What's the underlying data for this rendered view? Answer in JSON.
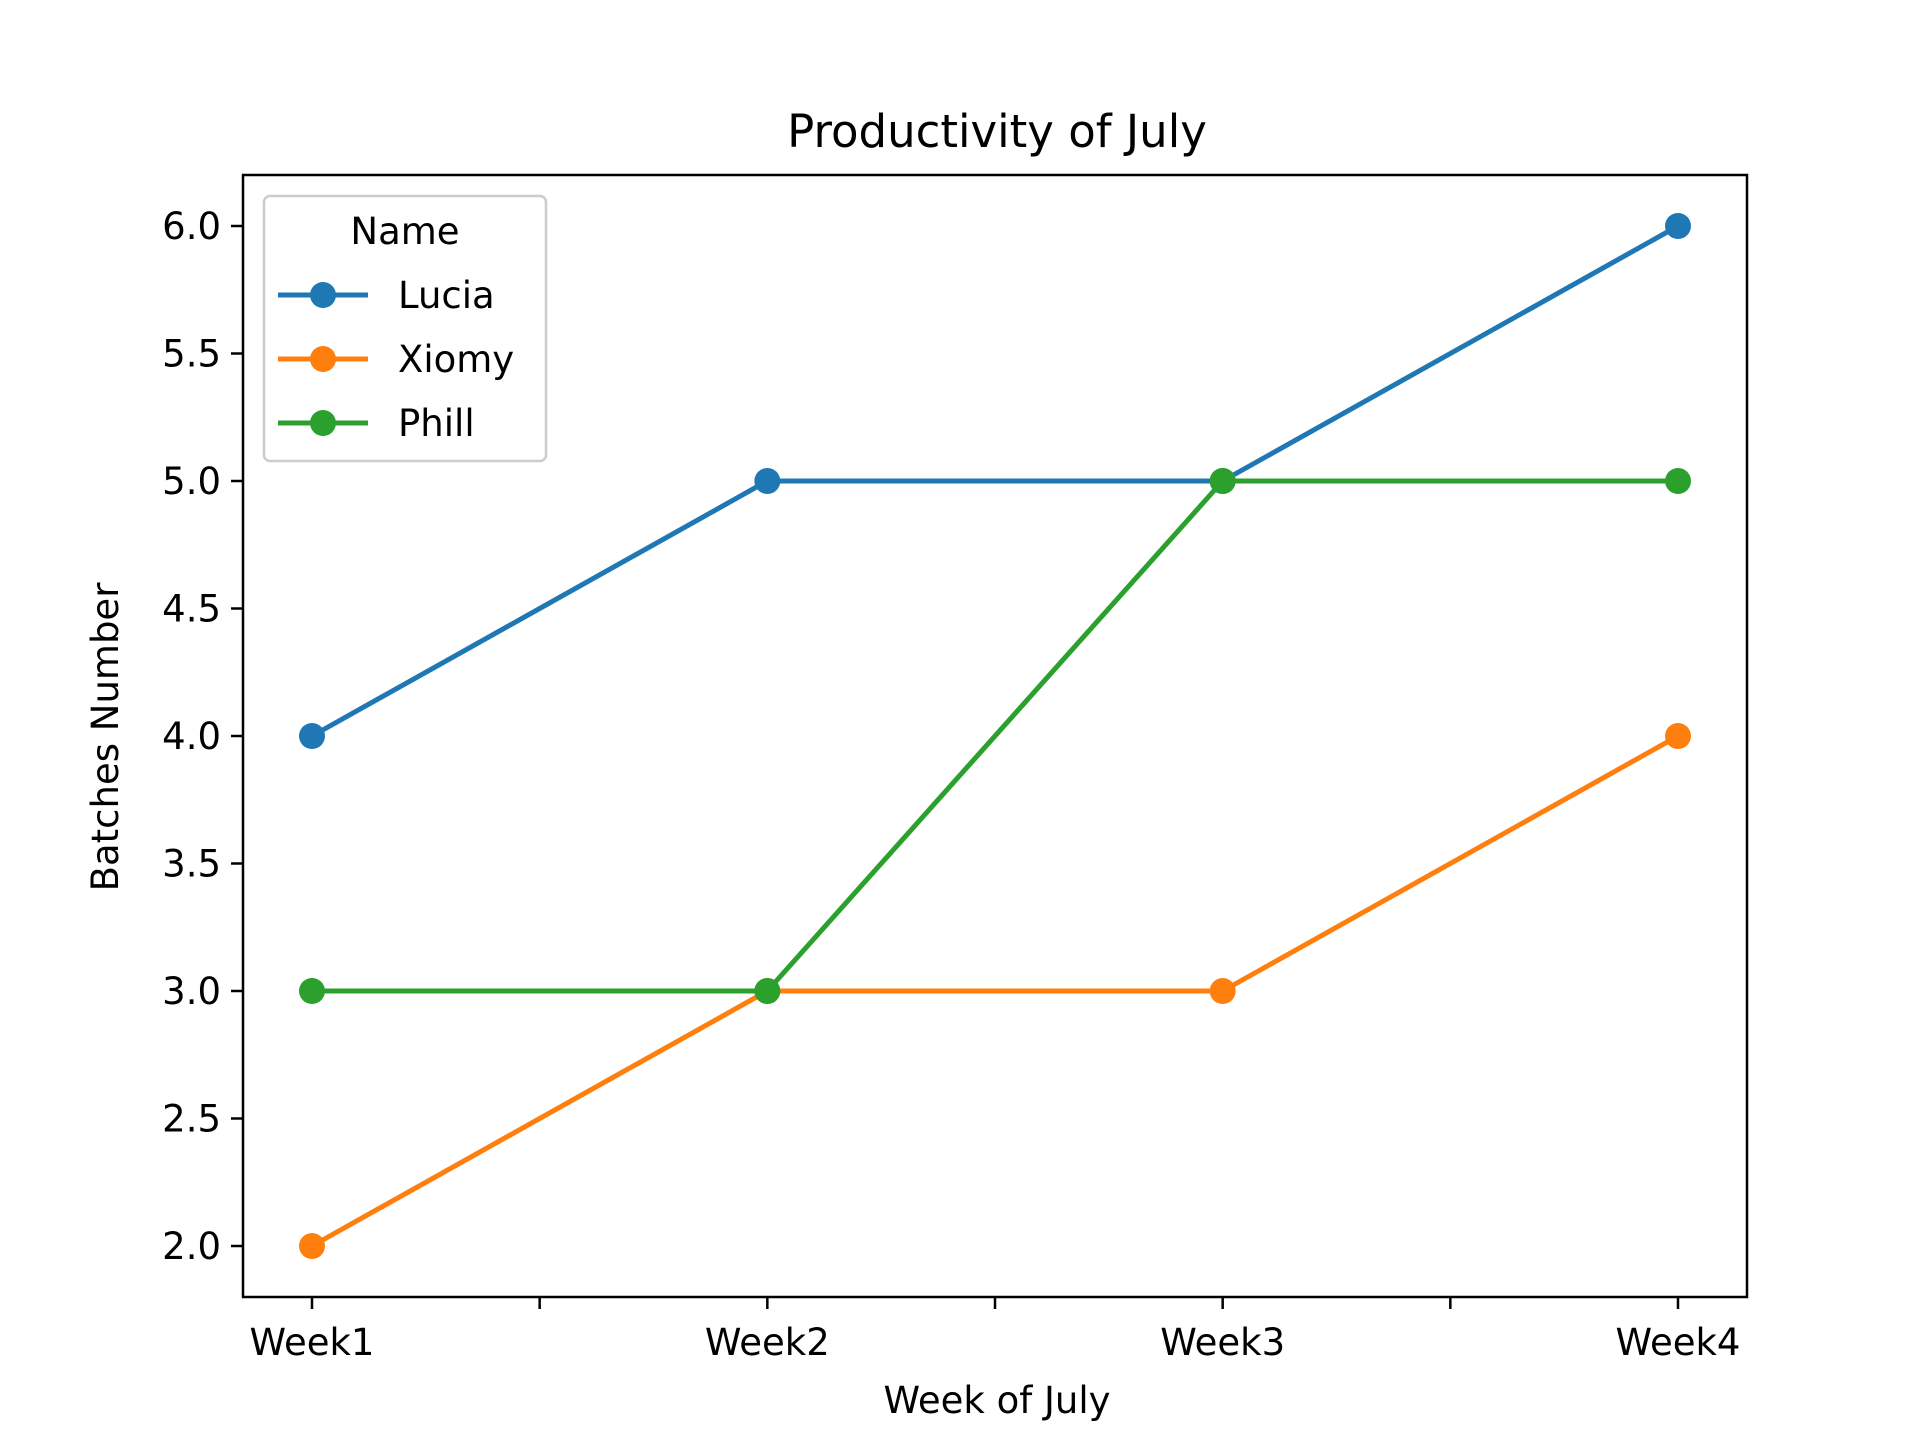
{
  "chart_data": {
    "type": "line",
    "title": "Productivity of July",
    "xlabel": "Week of July",
    "ylabel": "Batches Number",
    "categories": [
      "Week1",
      "Week2",
      "Week3",
      "Week4"
    ],
    "ylim": [
      1.8,
      6.2
    ],
    "yticks": [
      "2.0",
      "2.5",
      "3.0",
      "3.5",
      "4.0",
      "4.5",
      "5.0",
      "5.5",
      "6.0"
    ],
    "grid": false,
    "legend": {
      "title": "Name",
      "placement": "top-left"
    },
    "series": [
      {
        "name": "Lucia",
        "values": [
          4,
          5,
          5,
          6
        ],
        "color": "#1f77b4"
      },
      {
        "name": "Xiomy",
        "values": [
          2,
          3,
          3,
          4
        ],
        "color": "#ff7f0e"
      },
      {
        "name": "Phill",
        "values": [
          3,
          3,
          5,
          5
        ],
        "color": "#2ca02c"
      }
    ]
  }
}
